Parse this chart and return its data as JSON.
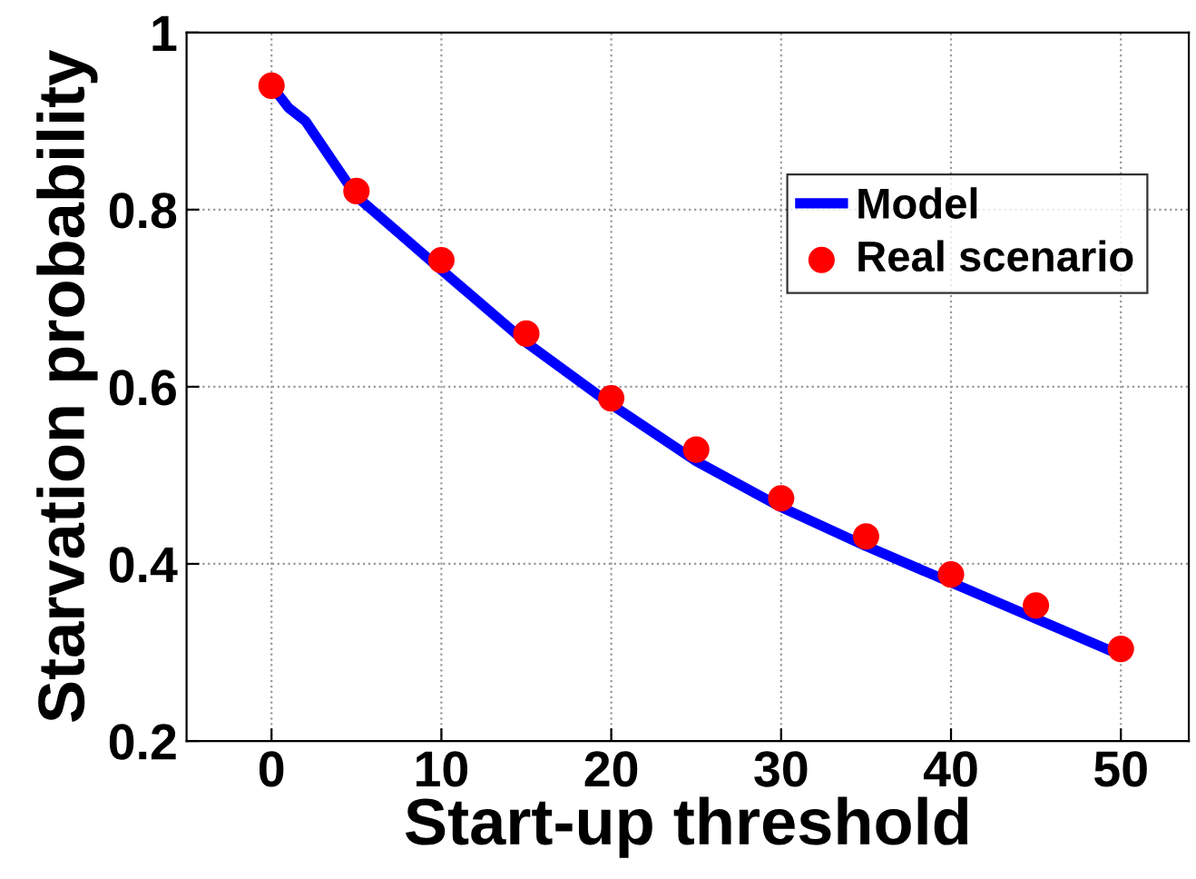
{
  "chart_data": {
    "type": "line",
    "xlabel": "Start-up threshold",
    "ylabel": "Starvation probability",
    "xlim": [
      -5,
      54
    ],
    "xticks": [
      0,
      10,
      20,
      30,
      40,
      50
    ],
    "ylim": [
      0.2,
      1
    ],
    "yticks": [
      0.2,
      0.4,
      0.6,
      0.8,
      1
    ],
    "grid": true,
    "legend": "top right",
    "series": [
      {
        "name": "Model",
        "color": "#0000ff",
        "line_style": "solid",
        "marker": "none",
        "x": [
          0,
          1,
          2,
          5,
          10,
          15,
          20,
          25,
          30,
          35,
          40,
          45,
          50
        ],
        "values": [
          0.94,
          0.915,
          0.9,
          0.815,
          0.732,
          0.65,
          0.58,
          0.516,
          0.464,
          0.42,
          0.379,
          0.338,
          0.297
        ]
      },
      {
        "name": "Real scenario",
        "type": "scatter",
        "color": "#ff0000",
        "marker": "circle",
        "x": [
          0,
          5,
          10,
          15,
          20,
          25,
          30,
          35,
          40,
          45,
          50
        ],
        "values": [
          0.94,
          0.821,
          0.743,
          0.66,
          0.587,
          0.529,
          0.474,
          0.431,
          0.388,
          0.353,
          0.304
        ]
      }
    ]
  }
}
